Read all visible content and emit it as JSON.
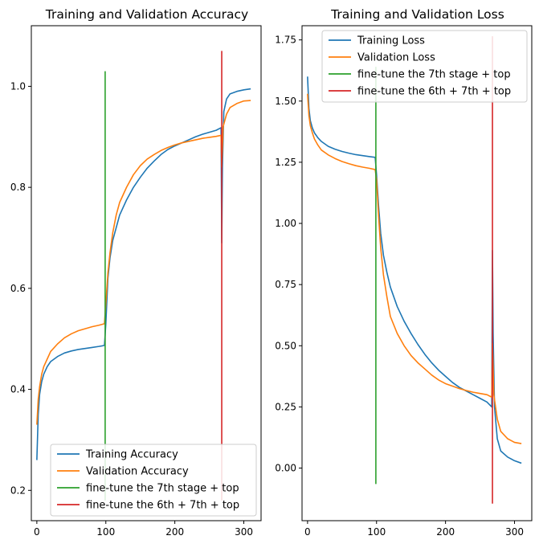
{
  "chart_data": [
    {
      "type": "line",
      "title": "Training and Validation Accuracy",
      "xlabel": "",
      "ylabel": "",
      "xlim": [
        -8,
        325
      ],
      "ylim": [
        0.14,
        1.12
      ],
      "xticks": [
        0,
        100,
        200,
        300
      ],
      "xtick_labels": [
        "0",
        "100",
        "200",
        "300"
      ],
      "yticks": [
        0.2,
        0.4,
        0.6,
        0.8,
        1.0
      ],
      "ytick_labels": [
        "0.2",
        "0.4",
        "0.6",
        "0.8",
        "1.0"
      ],
      "grid": false,
      "legend_position": "lower right",
      "series": [
        {
          "name": "Training Accuracy",
          "color": "#1f77b4",
          "points": [
            [
              0,
              0.26
            ],
            [
              2,
              0.35
            ],
            [
              4,
              0.39
            ],
            [
              7,
              0.415
            ],
            [
              10,
              0.43
            ],
            [
              15,
              0.445
            ],
            [
              20,
              0.455
            ],
            [
              30,
              0.465
            ],
            [
              40,
              0.472
            ],
            [
              50,
              0.476
            ],
            [
              60,
              0.479
            ],
            [
              70,
              0.481
            ],
            [
              80,
              0.483
            ],
            [
              90,
              0.485
            ],
            [
              98,
              0.487
            ],
            [
              100,
              0.53
            ],
            [
              103,
              0.62
            ],
            [
              106,
              0.66
            ],
            [
              110,
              0.695
            ],
            [
              115,
              0.72
            ],
            [
              120,
              0.745
            ],
            [
              130,
              0.775
            ],
            [
              140,
              0.8
            ],
            [
              150,
              0.82
            ],
            [
              160,
              0.838
            ],
            [
              170,
              0.852
            ],
            [
              180,
              0.865
            ],
            [
              190,
              0.875
            ],
            [
              200,
              0.882
            ],
            [
              210,
              0.888
            ],
            [
              220,
              0.894
            ],
            [
              230,
              0.9
            ],
            [
              240,
              0.905
            ],
            [
              250,
              0.909
            ],
            [
              260,
              0.913
            ],
            [
              267,
              0.918
            ],
            [
              268,
              0.69
            ],
            [
              269,
              0.84
            ],
            [
              271,
              0.95
            ],
            [
              275,
              0.975
            ],
            [
              280,
              0.985
            ],
            [
              290,
              0.99
            ],
            [
              300,
              0.993
            ],
            [
              310,
              0.995
            ]
          ]
        },
        {
          "name": "Validation Accuracy",
          "color": "#ff7f0e",
          "points": [
            [
              0,
              0.33
            ],
            [
              2,
              0.38
            ],
            [
              4,
              0.405
            ],
            [
              7,
              0.43
            ],
            [
              10,
              0.445
            ],
            [
              15,
              0.46
            ],
            [
              20,
              0.475
            ],
            [
              30,
              0.49
            ],
            [
              40,
              0.502
            ],
            [
              50,
              0.51
            ],
            [
              60,
              0.516
            ],
            [
              70,
              0.52
            ],
            [
              80,
              0.524
            ],
            [
              90,
              0.527
            ],
            [
              98,
              0.53
            ],
            [
              100,
              0.57
            ],
            [
              103,
              0.63
            ],
            [
              106,
              0.67
            ],
            [
              110,
              0.71
            ],
            [
              115,
              0.745
            ],
            [
              120,
              0.77
            ],
            [
              130,
              0.8
            ],
            [
              140,
              0.825
            ],
            [
              150,
              0.843
            ],
            [
              160,
              0.856
            ],
            [
              170,
              0.865
            ],
            [
              180,
              0.873
            ],
            [
              190,
              0.879
            ],
            [
              200,
              0.884
            ],
            [
              210,
              0.888
            ],
            [
              220,
              0.891
            ],
            [
              230,
              0.894
            ],
            [
              240,
              0.897
            ],
            [
              250,
              0.899
            ],
            [
              260,
              0.901
            ],
            [
              267,
              0.903
            ],
            [
              268,
              0.84
            ],
            [
              270,
              0.92
            ],
            [
              275,
              0.945
            ],
            [
              280,
              0.958
            ],
            [
              290,
              0.966
            ],
            [
              300,
              0.971
            ],
            [
              310,
              0.972
            ]
          ]
        },
        {
          "name": "fine-tune the 7th stage + top",
          "color": "#2ca02c",
          "points": [
            [
              99,
              0.18
            ],
            [
              99,
              1.03
            ]
          ]
        },
        {
          "name": "fine-tune the 6th + 7th + top",
          "color": "#d62728",
          "points": [
            [
              268,
              0.18
            ],
            [
              268,
              1.07
            ]
          ]
        }
      ]
    },
    {
      "type": "line",
      "title": "Training and Validation Loss",
      "xlabel": "",
      "ylabel": "",
      "xlim": [
        -8,
        325
      ],
      "ylim": [
        -0.215,
        1.808
      ],
      "xticks": [
        0,
        100,
        200,
        300
      ],
      "xtick_labels": [
        "0",
        "100",
        "200",
        "300"
      ],
      "yticks": [
        0.0,
        0.25,
        0.5,
        0.75,
        1.0,
        1.25,
        1.5,
        1.75
      ],
      "ytick_labels": [
        "0.00",
        "0.25",
        "0.50",
        "0.75",
        "1.00",
        "1.25",
        "1.50",
        "1.75"
      ],
      "grid": false,
      "legend_position": "upper right",
      "series": [
        {
          "name": "Training Loss",
          "color": "#1f77b4",
          "points": [
            [
              0,
              1.6
            ],
            [
              2,
              1.47
            ],
            [
              4,
              1.42
            ],
            [
              7,
              1.39
            ],
            [
              10,
              1.37
            ],
            [
              15,
              1.35
            ],
            [
              20,
              1.335
            ],
            [
              30,
              1.315
            ],
            [
              40,
              1.303
            ],
            [
              50,
              1.294
            ],
            [
              60,
              1.287
            ],
            [
              70,
              1.281
            ],
            [
              80,
              1.277
            ],
            [
              90,
              1.273
            ],
            [
              98,
              1.27
            ],
            [
              100,
              1.2
            ],
            [
              103,
              1.07
            ],
            [
              106,
              0.96
            ],
            [
              110,
              0.87
            ],
            [
              115,
              0.8
            ],
            [
              120,
              0.74
            ],
            [
              130,
              0.66
            ],
            [
              140,
              0.6
            ],
            [
              150,
              0.55
            ],
            [
              160,
              0.505
            ],
            [
              170,
              0.465
            ],
            [
              180,
              0.43
            ],
            [
              190,
              0.4
            ],
            [
              200,
              0.375
            ],
            [
              210,
              0.35
            ],
            [
              220,
              0.33
            ],
            [
              230,
              0.315
            ],
            [
              240,
              0.3
            ],
            [
              250,
              0.285
            ],
            [
              260,
              0.27
            ],
            [
              267,
              0.25
            ],
            [
              268,
              0.89
            ],
            [
              269,
              0.55
            ],
            [
              271,
              0.25
            ],
            [
              275,
              0.12
            ],
            [
              280,
              0.07
            ],
            [
              290,
              0.045
            ],
            [
              300,
              0.03
            ],
            [
              310,
              0.02
            ]
          ]
        },
        {
          "name": "Validation Loss",
          "color": "#ff7f0e",
          "points": [
            [
              0,
              1.53
            ],
            [
              2,
              1.44
            ],
            [
              4,
              1.4
            ],
            [
              7,
              1.37
            ],
            [
              10,
              1.345
            ],
            [
              15,
              1.32
            ],
            [
              20,
              1.3
            ],
            [
              30,
              1.28
            ],
            [
              40,
              1.265
            ],
            [
              50,
              1.253
            ],
            [
              60,
              1.244
            ],
            [
              70,
              1.236
            ],
            [
              80,
              1.23
            ],
            [
              90,
              1.225
            ],
            [
              98,
              1.22
            ],
            [
              100,
              1.18
            ],
            [
              103,
              1.03
            ],
            [
              106,
              0.9
            ],
            [
              110,
              0.79
            ],
            [
              115,
              0.7
            ],
            [
              120,
              0.62
            ],
            [
              130,
              0.55
            ],
            [
              140,
              0.5
            ],
            [
              150,
              0.46
            ],
            [
              160,
              0.43
            ],
            [
              170,
              0.405
            ],
            [
              180,
              0.38
            ],
            [
              190,
              0.36
            ],
            [
              200,
              0.345
            ],
            [
              210,
              0.335
            ],
            [
              220,
              0.325
            ],
            [
              230,
              0.317
            ],
            [
              240,
              0.31
            ],
            [
              250,
              0.305
            ],
            [
              260,
              0.3
            ],
            [
              267,
              0.29
            ],
            [
              268,
              0.51
            ],
            [
              270,
              0.3
            ],
            [
              275,
              0.2
            ],
            [
              280,
              0.15
            ],
            [
              290,
              0.12
            ],
            [
              300,
              0.105
            ],
            [
              310,
              0.1
            ]
          ]
        },
        {
          "name": "fine-tune the 7th stage + top",
          "color": "#2ca02c",
          "points": [
            [
              99,
              -0.065
            ],
            [
              99,
              1.64
            ]
          ]
        },
        {
          "name": "fine-tune the 6th + 7th + top",
          "color": "#d62728",
          "points": [
            [
              268,
              -0.145
            ],
            [
              268,
              1.765
            ]
          ]
        }
      ]
    }
  ]
}
